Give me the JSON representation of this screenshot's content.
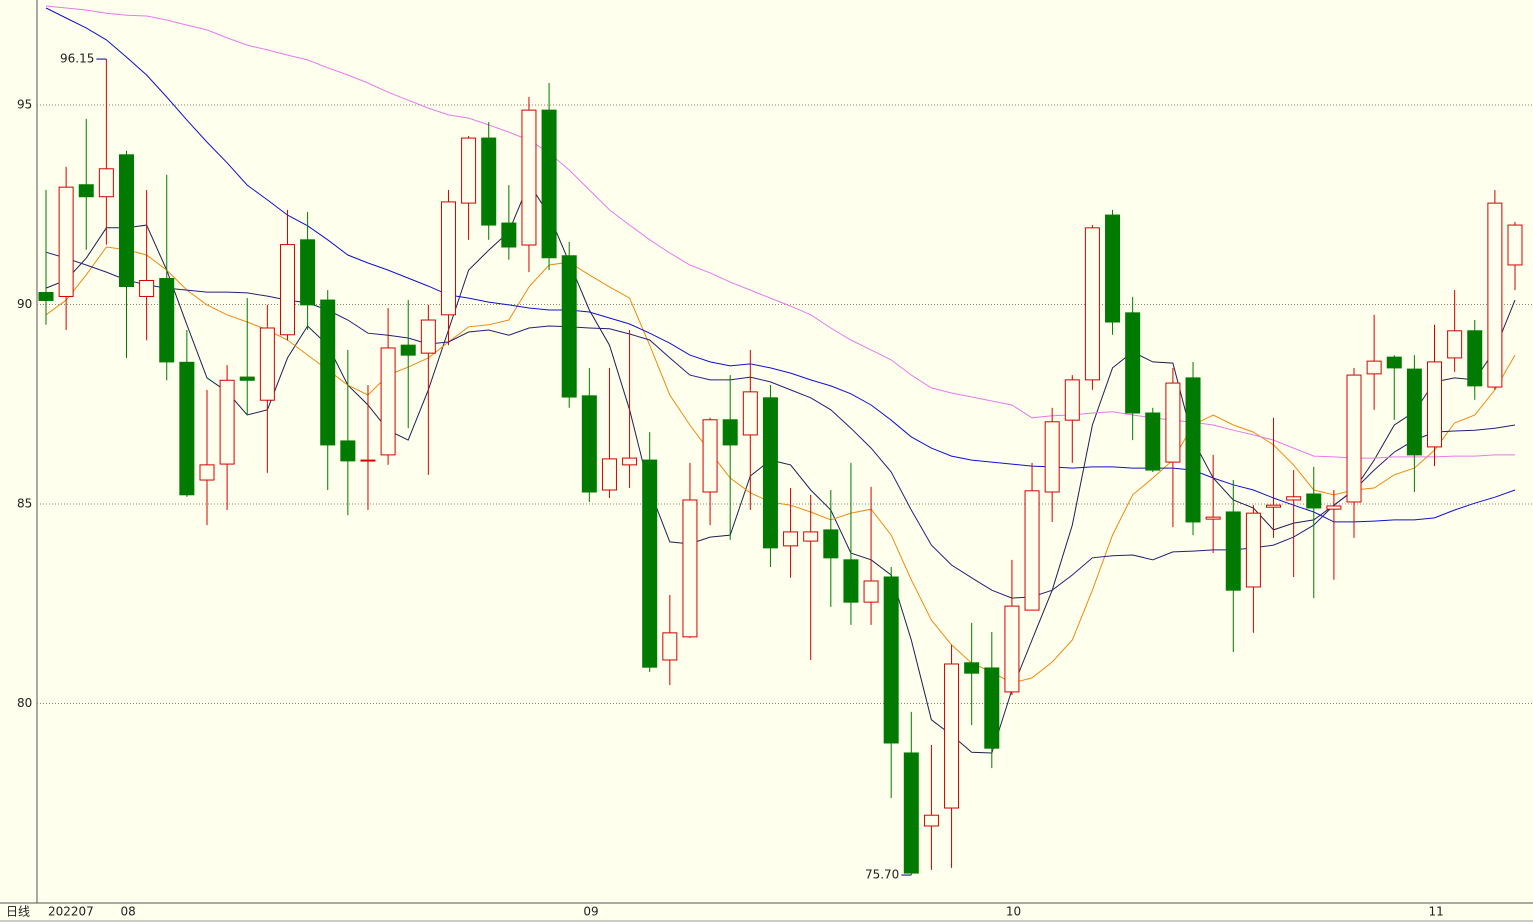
{
  "chart_data": {
    "type": "candlestick",
    "period_label": "日线",
    "categories": [
      "202207",
      null,
      null,
      null,
      "08",
      null,
      null,
      null,
      null,
      null,
      null,
      null,
      null,
      null,
      null,
      null,
      null,
      null,
      null,
      null,
      null,
      null,
      null,
      null,
      null,
      null,
      null,
      "09",
      null,
      null,
      null,
      null,
      null,
      null,
      null,
      null,
      null,
      null,
      null,
      null,
      null,
      null,
      null,
      null,
      null,
      null,
      null,
      null,
      "10",
      null,
      null,
      null,
      null,
      null,
      null,
      null,
      null,
      null,
      null,
      null,
      null,
      null,
      null,
      null,
      null,
      null,
      null,
      null,
      null,
      "11",
      null,
      null,
      null,
      null
    ],
    "open": [
      90.3,
      90.2,
      93.0,
      92.7,
      93.75,
      90.2,
      90.65,
      88.55,
      85.6,
      86.0,
      88.18,
      87.6,
      89.24,
      91.62,
      90.11,
      86.58,
      86.08,
      86.23,
      88.98,
      88.78,
      89.74,
      92.54,
      94.17,
      92.04,
      91.49,
      94.87,
      91.22,
      87.71,
      85.35,
      85.98,
      86.1,
      81.09,
      81.67,
      85.3,
      87.11,
      86.73,
      87.66,
      83.95,
      84.07,
      84.35,
      83.6,
      82.54,
      83.17,
      78.76,
      76.93,
      77.38,
      81.02,
      80.89,
      80.29,
      82.34,
      85.3,
      87.1,
      88.11,
      92.24,
      89.79,
      87.28,
      86.05,
      88.16,
      84.62,
      84.8,
      82.92,
      84.92,
      85.1,
      85.25,
      84.87,
      85.05,
      88.26,
      88.68,
      88.38,
      86.43,
      88.66,
      89.34,
      87.93,
      90.99
    ],
    "high": [
      92.87,
      93.45,
      94.65,
      96.15,
      93.85,
      92.87,
      93.25,
      89.36,
      87.86,
      88.48,
      90.16,
      89.99,
      92.37,
      92.32,
      90.36,
      88.86,
      87.98,
      89.91,
      90.11,
      89.99,
      92.87,
      94.22,
      94.57,
      92.99,
      95.2,
      95.55,
      91.57,
      88.41,
      88.41,
      89.36,
      86.8,
      82.72,
      86.03,
      87.16,
      88.23,
      88.86,
      87.98,
      85.4,
      85.23,
      85.35,
      86.03,
      85.43,
      83.42,
      79.79,
      78.96,
      81.47,
      82.02,
      81.79,
      83.6,
      86.03,
      87.41,
      88.23,
      91.99,
      92.37,
      90.19,
      87.41,
      88.41,
      88.56,
      86.23,
      85.6,
      84.97,
      87.16,
      85.85,
      85.93,
      85.35,
      88.41,
      89.74,
      88.73,
      88.73,
      89.49,
      90.36,
      89.61,
      92.87,
      92.07
    ],
    "low": [
      89.49,
      89.36,
      91.37,
      91.5,
      88.66,
      89.1,
      88.1,
      85.18,
      84.47,
      84.85,
      87.23,
      85.78,
      89.1,
      89.36,
      85.35,
      84.72,
      84.85,
      85.98,
      86.9,
      85.73,
      88.98,
      91.62,
      91.62,
      91.12,
      90.81,
      90.86,
      87.41,
      85.05,
      85.15,
      85.4,
      80.79,
      80.46,
      81.64,
      84.47,
      84.1,
      84.85,
      83.42,
      83.15,
      81.09,
      82.42,
      81.97,
      81.97,
      77.63,
      75.7,
      75.83,
      75.88,
      79.46,
      78.38,
      80.21,
      82.34,
      84.55,
      86.03,
      87.86,
      89.24,
      86.6,
      85.8,
      84.42,
      84.22,
      83.77,
      81.29,
      81.77,
      84.15,
      83.17,
      82.64,
      83.1,
      84.15,
      87.36,
      87.11,
      85.3,
      85.95,
      88.31,
      87.61,
      87.86,
      90.36
    ],
    "close": [
      90.1,
      92.94,
      92.7,
      93.4,
      90.45,
      90.6,
      88.56,
      85.23,
      85.98,
      88.1,
      88.1,
      89.41,
      91.5,
      89.99,
      86.48,
      86.08,
      86.1,
      88.91,
      88.73,
      89.61,
      92.57,
      94.17,
      91.99,
      91.44,
      94.87,
      91.17,
      87.68,
      85.3,
      86.13,
      86.15,
      80.91,
      81.77,
      85.1,
      87.11,
      86.48,
      87.81,
      83.9,
      84.3,
      84.3,
      83.65,
      82.54,
      83.07,
      79.01,
      75.75,
      77.2,
      80.99,
      80.76,
      78.88,
      82.44,
      85.33,
      87.06,
      88.11,
      91.92,
      89.56,
      87.28,
      85.85,
      88.03,
      84.55,
      84.67,
      82.84,
      84.77,
      84.97,
      85.18,
      84.9,
      84.95,
      88.23,
      88.58,
      88.41,
      86.23,
      88.56,
      89.34,
      87.96,
      92.54,
      91.99
    ],
    "up_color": "#d40000",
    "down_color": "#007a00",
    "lines": [
      {
        "color": "#1c2050",
        "values": [
          90.41,
          90.61,
          91.16,
          91.92,
          91.92,
          91.99,
          90.86,
          89.49,
          88.16,
          87.81,
          87.23,
          87.36,
          88.66,
          89.46,
          88.98,
          87.98,
          87.48,
          86.85,
          86.6,
          87.86,
          89.36,
          90.86,
          91.36,
          91.82,
          93.04,
          92.24,
          91.06,
          89.86,
          88.98,
          87.36,
          85.35,
          84.05,
          84.0,
          84.17,
          84.22,
          85.7,
          86.1,
          85.98,
          85.35,
          84.85,
          83.77,
          83.6,
          83.22,
          81.59,
          79.59,
          79.21,
          78.78,
          78.76,
          80.34,
          81.59,
          82.84,
          84.47,
          86.98,
          88.41,
          88.81,
          88.56,
          88.53,
          86.6,
          85.65,
          85.1,
          84.9,
          84.35,
          84.52,
          84.6,
          84.97,
          85.35,
          86.1,
          86.98,
          87.31,
          88.06,
          88.16,
          88.11,
          88.86,
          90.11
        ]
      },
      {
        "color": "#f08a10",
        "values": [
          89.74,
          90.11,
          90.74,
          91.44,
          91.37,
          91.24,
          90.86,
          90.36,
          89.99,
          89.74,
          89.56,
          89.36,
          89.11,
          88.73,
          88.36,
          87.98,
          87.73,
          88.23,
          88.43,
          88.66,
          89.06,
          89.44,
          89.49,
          89.61,
          90.44,
          90.99,
          91.06,
          90.74,
          90.44,
          90.16,
          88.98,
          87.73,
          86.98,
          86.3,
          85.65,
          85.28,
          85.05,
          84.97,
          84.8,
          84.6,
          84.77,
          84.87,
          84.22,
          83.1,
          82.09,
          81.47,
          81.01,
          80.79,
          80.51,
          80.64,
          81.04,
          81.59,
          82.84,
          84.22,
          85.23,
          85.65,
          86.1,
          86.98,
          87.23,
          86.98,
          86.8,
          86.48,
          85.98,
          85.35,
          85.23,
          85.35,
          85.4,
          85.73,
          85.9,
          86.35,
          87.03,
          87.23,
          87.86,
          88.73
        ]
      },
      {
        "color": "#22207a",
        "values": [
          91.31,
          91.16,
          90.99,
          90.81,
          90.61,
          90.49,
          90.41,
          90.36,
          90.31,
          90.31,
          90.29,
          90.21,
          90.11,
          90.04,
          89.86,
          89.61,
          89.28,
          89.23,
          89.16,
          89.01,
          89.06,
          89.31,
          89.36,
          89.23,
          89.41,
          89.46,
          89.44,
          89.41,
          89.39,
          89.26,
          89.11,
          88.66,
          88.23,
          88.11,
          88.11,
          88.18,
          88.06,
          87.86,
          87.66,
          87.36,
          86.9,
          86.4,
          85.8,
          84.85,
          83.97,
          83.47,
          83.15,
          82.84,
          82.64,
          82.67,
          82.84,
          83.22,
          83.65,
          83.7,
          83.72,
          83.6,
          83.8,
          83.82,
          83.85,
          83.85,
          83.9,
          83.97,
          84.17,
          84.47,
          84.97,
          85.35,
          85.85,
          86.3,
          86.6,
          86.8,
          86.83,
          86.85,
          86.9,
          86.98
        ]
      },
      {
        "color": "#1010d0",
        "values": [
          97.43,
          97.18,
          96.93,
          96.63,
          96.2,
          95.75,
          95.2,
          94.62,
          94.07,
          93.55,
          92.99,
          92.62,
          92.24,
          91.97,
          91.62,
          91.24,
          91.04,
          90.86,
          90.66,
          90.46,
          90.24,
          90.16,
          90.06,
          89.99,
          89.91,
          89.86,
          89.86,
          89.81,
          89.66,
          89.51,
          89.28,
          89.03,
          88.73,
          88.56,
          88.46,
          88.51,
          88.41,
          88.28,
          88.11,
          87.96,
          87.76,
          87.48,
          87.1,
          86.68,
          86.4,
          86.2,
          86.1,
          86.05,
          86.0,
          85.95,
          85.93,
          85.9,
          85.93,
          85.93,
          85.9,
          85.9,
          85.9,
          85.85,
          85.65,
          85.48,
          85.35,
          85.15,
          84.97,
          84.8,
          84.55,
          84.55,
          84.57,
          84.6,
          84.6,
          84.65,
          84.85,
          85.02,
          85.17,
          85.35
        ]
      },
      {
        "color": "#e87ae8",
        "values": [
          97.48,
          97.43,
          97.38,
          97.3,
          97.25,
          97.23,
          97.13,
          97.0,
          96.88,
          96.68,
          96.5,
          96.38,
          96.25,
          96.13,
          95.93,
          95.75,
          95.55,
          95.32,
          95.12,
          94.92,
          94.75,
          94.67,
          94.5,
          94.32,
          94.12,
          93.8,
          93.37,
          92.87,
          92.37,
          91.99,
          91.62,
          91.29,
          90.99,
          90.79,
          90.56,
          90.36,
          90.16,
          89.96,
          89.74,
          89.41,
          89.11,
          88.86,
          88.61,
          88.23,
          87.91,
          87.78,
          87.68,
          87.58,
          87.48,
          87.16,
          87.21,
          87.23,
          87.28,
          87.31,
          87.23,
          87.16,
          87.1,
          87.05,
          86.98,
          86.85,
          86.73,
          86.6,
          86.4,
          86.2,
          86.18,
          86.15,
          86.15,
          86.18,
          86.18,
          86.18,
          86.2,
          86.2,
          86.23,
          86.23
        ]
      }
    ],
    "high_label": "96.15",
    "low_label": "75.70",
    "ylim": [
      75,
      97.63
    ],
    "yticks": [
      80,
      85,
      90,
      95
    ],
    "grid": true
  }
}
